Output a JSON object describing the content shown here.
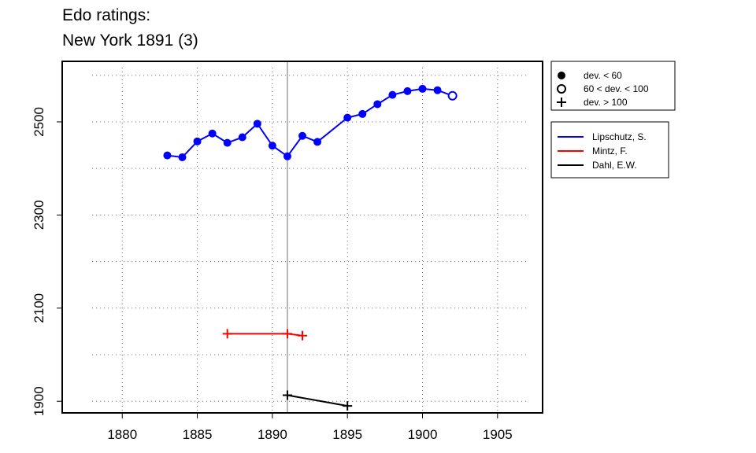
{
  "chart_data": {
    "type": "line",
    "title": "Edo ratings:",
    "subtitle": "New York 1891 (3)",
    "xlabel": "",
    "ylabel": "",
    "xlim": [
      1876,
      1908
    ],
    "ylim": [
      1875,
      2630
    ],
    "x_ticks": [
      1880,
      1885,
      1890,
      1895,
      1900,
      1905
    ],
    "y_ticks": [
      1900,
      2100,
      2300,
      2500
    ],
    "grid": true,
    "reference_line_x": 1891,
    "legend_marker_entries": [
      {
        "label": "dev. < 60",
        "marker": "filled-circle"
      },
      {
        "label": "60 < dev. < 100",
        "marker": "open-circle"
      },
      {
        "label": "dev. > 100",
        "marker": "plus"
      }
    ],
    "legend_placement": "outside-right",
    "series": [
      {
        "name": "Lipschutz, S.",
        "color": "#0000ff",
        "points": [
          {
            "x": 1883,
            "y": 2428,
            "m": "filled-circle"
          },
          {
            "x": 1884,
            "y": 2424,
            "m": "filled-circle"
          },
          {
            "x": 1885,
            "y": 2458,
            "m": "filled-circle"
          },
          {
            "x": 1886,
            "y": 2475,
            "m": "filled-circle"
          },
          {
            "x": 1887,
            "y": 2455,
            "m": "filled-circle"
          },
          {
            "x": 1888,
            "y": 2467,
            "m": "filled-circle"
          },
          {
            "x": 1889,
            "y": 2496,
            "m": "filled-circle"
          },
          {
            "x": 1890,
            "y": 2449,
            "m": "filled-circle"
          },
          {
            "x": 1891,
            "y": 2426,
            "m": "filled-circle"
          },
          {
            "x": 1892,
            "y": 2470,
            "m": "filled-circle"
          },
          {
            "x": 1893,
            "y": 2457,
            "m": "filled-circle"
          },
          {
            "x": 1895,
            "y": 2509,
            "m": "filled-circle"
          },
          {
            "x": 1896,
            "y": 2517,
            "m": "filled-circle"
          },
          {
            "x": 1897,
            "y": 2538,
            "m": "filled-circle"
          },
          {
            "x": 1898,
            "y": 2558,
            "m": "filled-circle"
          },
          {
            "x": 1899,
            "y": 2566,
            "m": "filled-circle"
          },
          {
            "x": 1900,
            "y": 2571,
            "m": "filled-circle"
          },
          {
            "x": 1901,
            "y": 2568,
            "m": "filled-circle"
          },
          {
            "x": 1902,
            "y": 2556,
            "m": "open-circle"
          }
        ]
      },
      {
        "name": "Mintz, F.",
        "color": "#ff0000",
        "points": [
          {
            "x": 1887,
            "y": 2045,
            "m": "plus"
          },
          {
            "x": 1891,
            "y": 2045,
            "m": "plus"
          },
          {
            "x": 1892,
            "y": 2041,
            "m": "plus"
          }
        ]
      },
      {
        "name": "Dahl, E.W.",
        "color": "#000000",
        "points": [
          {
            "x": 1891,
            "y": 1913,
            "m": "plus"
          },
          {
            "x": 1895,
            "y": 1890,
            "m": "plus"
          }
        ]
      }
    ]
  }
}
